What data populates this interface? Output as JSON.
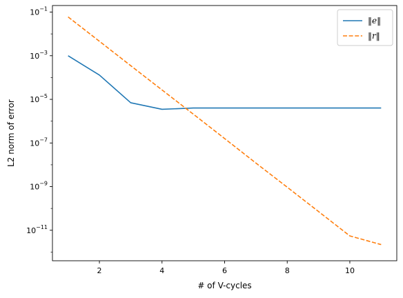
{
  "chart_data": {
    "type": "line",
    "xlabel": "# of V-cycles",
    "ylabel": "L2 norm of error",
    "yscale": "log",
    "xlim": [
      0.5,
      11.5
    ],
    "ylim": [
      4e-13,
      0.2
    ],
    "xticks": [
      2,
      4,
      6,
      8,
      10
    ],
    "xtick_labels": [
      "2",
      "4",
      "6",
      "8",
      "10"
    ],
    "yticks": [
      {
        "value": 1e-11,
        "base": "10",
        "exp": "−11"
      },
      {
        "value": 1e-09,
        "base": "10",
        "exp": "−9"
      },
      {
        "value": 1e-07,
        "base": "10",
        "exp": "−7"
      },
      {
        "value": 1e-05,
        "base": "10",
        "exp": "−5"
      },
      {
        "value": 0.001,
        "base": "10",
        "exp": "−3"
      },
      {
        "value": 0.1,
        "base": "10",
        "exp": "−1"
      }
    ],
    "grid": false,
    "legend": "top-right",
    "x": [
      1,
      2,
      3,
      4,
      5,
      6,
      7,
      8,
      9,
      10,
      11
    ],
    "series": [
      {
        "name": "‖e‖",
        "color": "#1f77b4",
        "style": "solid",
        "values": [
          0.001,
          0.00013,
          7e-06,
          3.5e-06,
          4e-06,
          4e-06,
          4e-06,
          4e-06,
          4e-06,
          4e-06,
          4e-06
        ]
      },
      {
        "name": "‖r‖",
        "color": "#ff7f0e",
        "style": "dashed",
        "values": [
          0.06,
          0.0046,
          0.00035,
          2.7e-05,
          2.1e-06,
          1.6e-07,
          1.2e-08,
          9.4e-10,
          7.2e-11,
          5.5e-12,
          2.2e-12
        ]
      }
    ]
  }
}
